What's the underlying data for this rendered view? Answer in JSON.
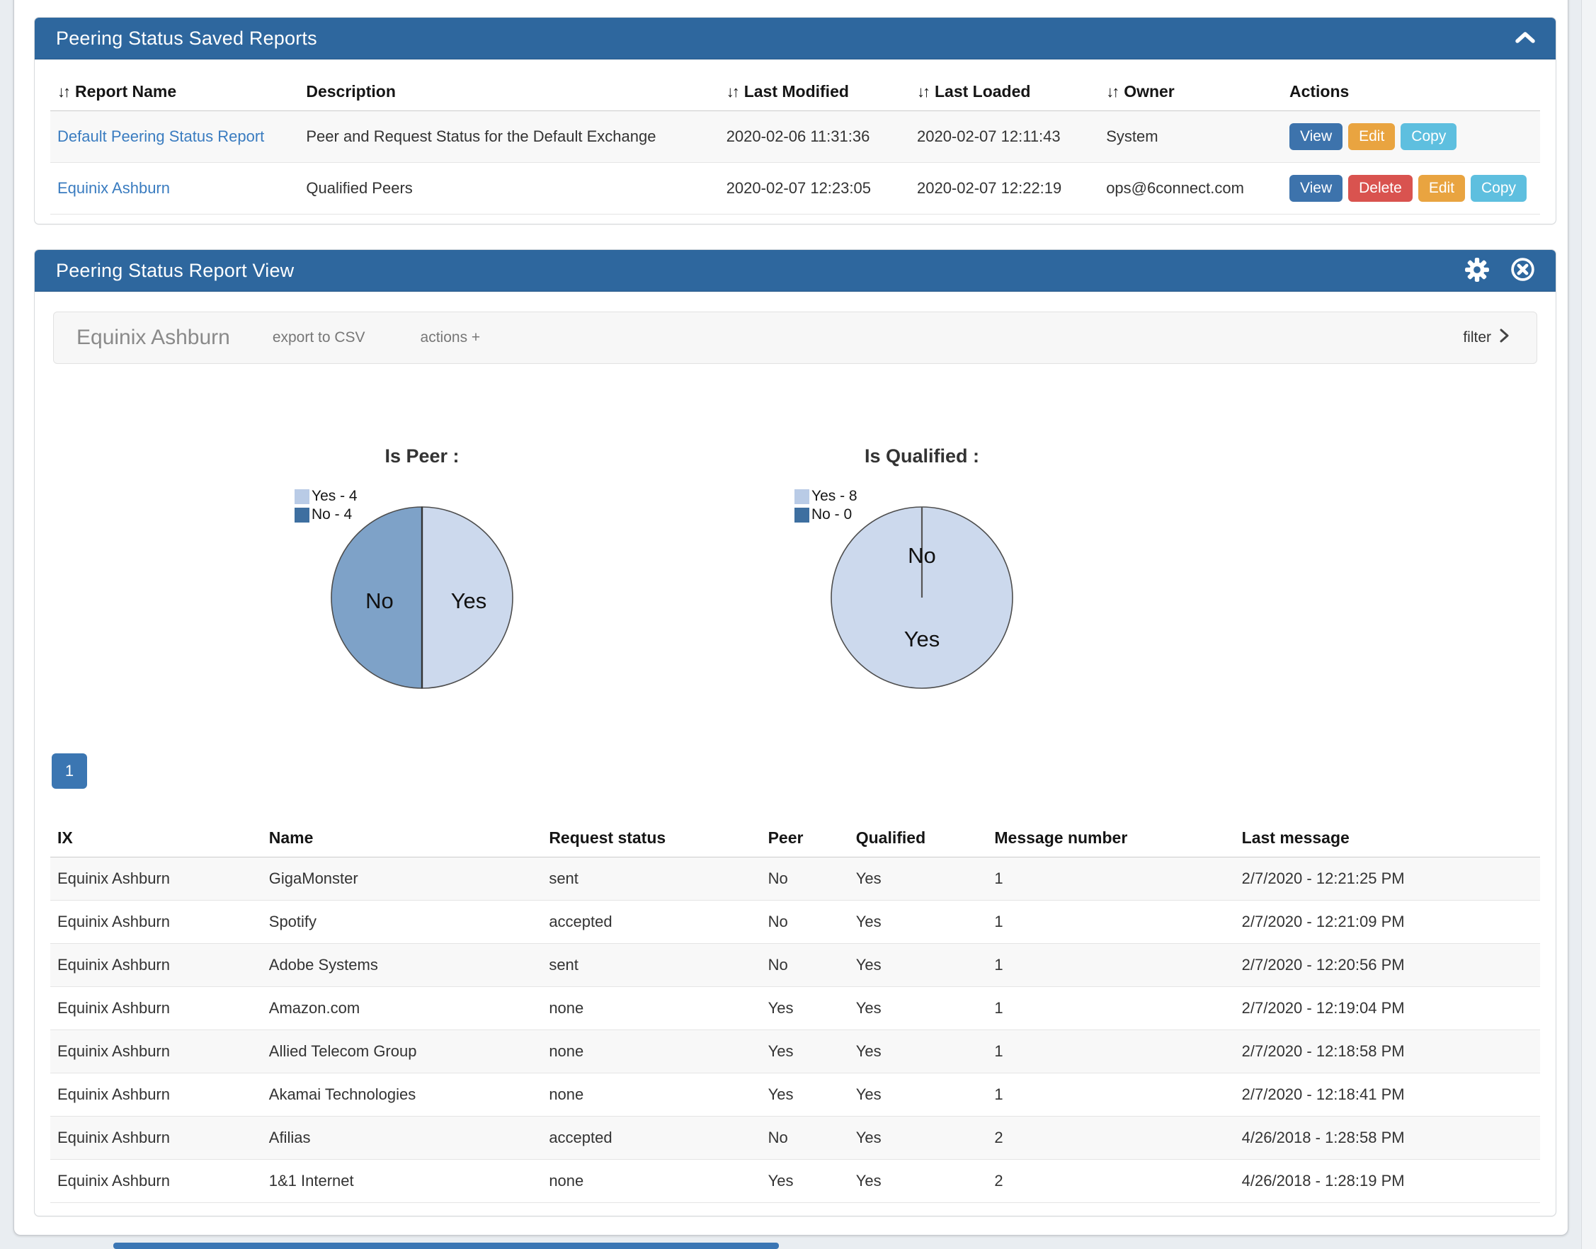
{
  "saved_reports_panel": {
    "title": "Peering Status Saved Reports",
    "columns": [
      {
        "label": "Report Name",
        "sortable": true
      },
      {
        "label": "Description",
        "sortable": false
      },
      {
        "label": "Last Modified",
        "sortable": true
      },
      {
        "label": "Last Loaded",
        "sortable": true
      },
      {
        "label": "Owner",
        "sortable": true
      },
      {
        "label": "Actions",
        "sortable": false
      }
    ],
    "rows": [
      {
        "report_name": "Default Peering Status Report",
        "description": "Peer and Request Status for the Default Exchange",
        "last_modified": "2020-02-06 11:31:36",
        "last_loaded": "2020-02-07 12:11:43",
        "owner": "System",
        "actions": [
          "View",
          "Edit",
          "Copy"
        ]
      },
      {
        "report_name": "Equinix Ashburn",
        "description": "Qualified Peers",
        "last_modified": "2020-02-07 12:23:05",
        "last_loaded": "2020-02-07 12:22:19",
        "owner": "ops@6connect.com",
        "actions": [
          "View",
          "Delete",
          "Edit",
          "Copy"
        ]
      }
    ]
  },
  "action_button_colors": {
    "View": "#3d73ac",
    "Delete": "#d9534f",
    "Edit": "#e9a440",
    "Copy": "#5ebfdf"
  },
  "report_view_panel": {
    "title": "Peering Status Report View",
    "toolbar": {
      "report_name": "Equinix Ashburn",
      "export_csv": "export to CSV",
      "actions": "actions +",
      "filter": "filter"
    },
    "pagination": {
      "page": "1"
    },
    "peers_table": {
      "columns": [
        "IX",
        "Name",
        "Request status",
        "Peer",
        "Qualified",
        "Message number",
        "Last message"
      ],
      "rows": [
        {
          "ix": "Equinix Ashburn",
          "name": "GigaMonster",
          "request_status": "sent",
          "peer": "No",
          "qualified": "Yes",
          "message_number": "1",
          "last_message": "2/7/2020 - 12:21:25 PM"
        },
        {
          "ix": "Equinix Ashburn",
          "name": "Spotify",
          "request_status": "accepted",
          "peer": "No",
          "qualified": "Yes",
          "message_number": "1",
          "last_message": "2/7/2020 - 12:21:09 PM"
        },
        {
          "ix": "Equinix Ashburn",
          "name": "Adobe Systems",
          "request_status": "sent",
          "peer": "No",
          "qualified": "Yes",
          "message_number": "1",
          "last_message": "2/7/2020 - 12:20:56 PM"
        },
        {
          "ix": "Equinix Ashburn",
          "name": "Amazon.com",
          "request_status": "none",
          "peer": "Yes",
          "qualified": "Yes",
          "message_number": "1",
          "last_message": "2/7/2020 - 12:19:04 PM"
        },
        {
          "ix": "Equinix Ashburn",
          "name": "Allied Telecom Group",
          "request_status": "none",
          "peer": "Yes",
          "qualified": "Yes",
          "message_number": "1",
          "last_message": "2/7/2020 - 12:18:58 PM"
        },
        {
          "ix": "Equinix Ashburn",
          "name": "Akamai Technologies",
          "request_status": "none",
          "peer": "Yes",
          "qualified": "Yes",
          "message_number": "1",
          "last_message": "2/7/2020 - 12:18:41 PM"
        },
        {
          "ix": "Equinix Ashburn",
          "name": "Afilias",
          "request_status": "accepted",
          "peer": "No",
          "qualified": "Yes",
          "message_number": "2",
          "last_message": "4/26/2018 - 1:28:58 PM"
        },
        {
          "ix": "Equinix Ashburn",
          "name": "1&1 Internet",
          "request_status": "none",
          "peer": "Yes",
          "qualified": "Yes",
          "message_number": "2",
          "last_message": "4/26/2018 - 1:28:19 PM"
        }
      ]
    }
  },
  "chart_data": [
    {
      "type": "pie",
      "title": "Is Peer :",
      "slices": [
        {
          "label": "Yes",
          "value": 4,
          "color": "#ccd9ed"
        },
        {
          "label": "No",
          "value": 4,
          "color": "#7ea2c8"
        }
      ],
      "legend": [
        {
          "label": "Yes - 4",
          "color": "#b9cbe6"
        },
        {
          "label": "No - 4",
          "color": "#3e6fa0"
        }
      ],
      "legend_position": "top-left"
    },
    {
      "type": "pie",
      "title": "Is Qualified :",
      "slices": [
        {
          "label": "Yes",
          "value": 8,
          "color": "#ccd9ed"
        },
        {
          "label": "No",
          "value": 0,
          "color": "#3e6fa0"
        }
      ],
      "legend": [
        {
          "label": "Yes - 8",
          "color": "#b9cbe6"
        },
        {
          "label": "No - 0",
          "color": "#3e6fa0"
        }
      ],
      "legend_position": "top-left"
    }
  ],
  "colors": {
    "panel_header": "#2e679e",
    "pagination": "#3b76b2",
    "link": "#3a7cc0",
    "page_background": "#e9edf1"
  }
}
